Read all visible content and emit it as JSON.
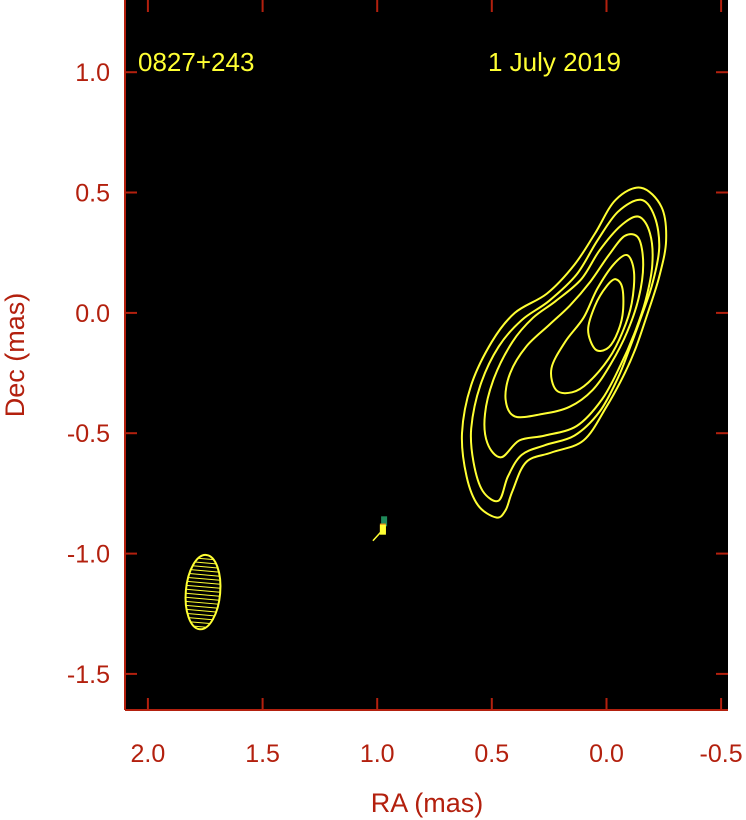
{
  "chart_data": {
    "type": "contour",
    "source_label": "0827+243",
    "date_label": "1 July 2019",
    "xlabel": "RA (mas)",
    "ylabel": "Dec (mas)",
    "xlim": [
      2.1,
      -0.53
    ],
    "ylim": [
      -1.65,
      1.3
    ],
    "x_ticks": [
      "2.0",
      "1.5",
      "1.0",
      "0.5",
      "0.0",
      "-0.5"
    ],
    "y_ticks": [
      "1.0",
      "0.5",
      "0.0",
      "-0.5",
      "-1.0",
      "-1.5"
    ],
    "x_tick_values": [
      2.0,
      1.5,
      1.0,
      0.5,
      0.0,
      -0.5
    ],
    "y_tick_values": [
      1.0,
      0.5,
      0.0,
      -0.5,
      -1.0,
      -1.5
    ],
    "background_color": "#000000",
    "contour_color": "#ffff33",
    "axis_color": "#b3200e",
    "contours": [
      [
        [
          0.48,
          -0.85
        ],
        [
          0.56,
          -0.8
        ],
        [
          0.61,
          -0.68
        ],
        [
          0.63,
          -0.5
        ],
        [
          0.59,
          -0.3
        ],
        [
          0.5,
          -0.12
        ],
        [
          0.4,
          0.0
        ],
        [
          0.26,
          0.08
        ],
        [
          0.14,
          0.2
        ],
        [
          0.05,
          0.33
        ],
        [
          -0.04,
          0.47
        ],
        [
          -0.15,
          0.52
        ],
        [
          -0.24,
          0.44
        ],
        [
          -0.26,
          0.3
        ],
        [
          -0.23,
          0.15
        ],
        [
          -0.18,
          0.0
        ],
        [
          -0.13,
          -0.14
        ],
        [
          -0.08,
          -0.25
        ],
        [
          0.0,
          -0.39
        ],
        [
          0.1,
          -0.53
        ],
        [
          0.24,
          -0.58
        ],
        [
          0.35,
          -0.62
        ],
        [
          0.41,
          -0.74
        ],
        [
          0.44,
          -0.82
        ]
      ],
      [
        [
          0.47,
          -0.78
        ],
        [
          0.54,
          -0.74
        ],
        [
          0.58,
          -0.62
        ],
        [
          0.59,
          -0.48
        ],
        [
          0.55,
          -0.3
        ],
        [
          0.47,
          -0.14
        ],
        [
          0.37,
          -0.03
        ],
        [
          0.25,
          0.05
        ],
        [
          0.13,
          0.16
        ],
        [
          0.04,
          0.3
        ],
        [
          -0.05,
          0.42
        ],
        [
          -0.15,
          0.47
        ],
        [
          -0.21,
          0.4
        ],
        [
          -0.23,
          0.27
        ],
        [
          -0.2,
          0.12
        ],
        [
          -0.15,
          -0.02
        ],
        [
          -0.1,
          -0.15
        ],
        [
          -0.05,
          -0.27
        ],
        [
          0.03,
          -0.41
        ],
        [
          0.14,
          -0.51
        ],
        [
          0.27,
          -0.55
        ],
        [
          0.37,
          -0.59
        ],
        [
          0.43,
          -0.68
        ]
      ],
      [
        [
          0.46,
          -0.6
        ],
        [
          0.52,
          -0.54
        ],
        [
          0.53,
          -0.42
        ],
        [
          0.49,
          -0.27
        ],
        [
          0.41,
          -0.12
        ],
        [
          0.32,
          -0.02
        ],
        [
          0.22,
          0.05
        ],
        [
          0.11,
          0.14
        ],
        [
          0.03,
          0.26
        ],
        [
          -0.06,
          0.36
        ],
        [
          -0.14,
          0.4
        ],
        [
          -0.19,
          0.33
        ],
        [
          -0.2,
          0.2
        ],
        [
          -0.17,
          0.05
        ],
        [
          -0.12,
          -0.09
        ],
        [
          -0.06,
          -0.22
        ],
        [
          0.02,
          -0.36
        ],
        [
          0.13,
          -0.47
        ],
        [
          0.27,
          -0.51
        ],
        [
          0.38,
          -0.53
        ]
      ],
      [
        [
          0.4,
          -0.43
        ],
        [
          0.44,
          -0.36
        ],
        [
          0.42,
          -0.25
        ],
        [
          0.35,
          -0.14
        ],
        [
          0.25,
          -0.05
        ],
        [
          0.16,
          0.03
        ],
        [
          0.07,
          0.13
        ],
        [
          -0.01,
          0.24
        ],
        [
          -0.08,
          0.32
        ],
        [
          -0.14,
          0.31
        ],
        [
          -0.16,
          0.2
        ],
        [
          -0.14,
          0.06
        ],
        [
          -0.09,
          -0.08
        ],
        [
          -0.02,
          -0.21
        ],
        [
          0.06,
          -0.32
        ],
        [
          0.16,
          -0.39
        ],
        [
          0.28,
          -0.42
        ]
      ],
      [
        [
          0.22,
          -0.32
        ],
        [
          0.24,
          -0.23
        ],
        [
          0.18,
          -0.12
        ],
        [
          0.1,
          -0.02
        ],
        [
          0.04,
          0.1
        ],
        [
          -0.03,
          0.2
        ],
        [
          -0.09,
          0.24
        ],
        [
          -0.12,
          0.17
        ],
        [
          -0.11,
          0.04
        ],
        [
          -0.07,
          -0.08
        ],
        [
          -0.01,
          -0.19
        ],
        [
          0.08,
          -0.29
        ],
        [
          0.15,
          -0.33
        ]
      ],
      [
        [
          0.05,
          -0.15
        ],
        [
          0.08,
          -0.07
        ],
        [
          0.05,
          0.03
        ],
        [
          0.0,
          0.11
        ],
        [
          -0.04,
          0.14
        ],
        [
          -0.07,
          0.1
        ],
        [
          -0.07,
          -0.01
        ],
        [
          -0.04,
          -0.1
        ],
        [
          0.0,
          -0.15
        ]
      ]
    ],
    "feature_marks": [
      {
        "ra": 0.97,
        "dec": -0.87,
        "color": "#1f8a5a"
      },
      {
        "ra": 0.975,
        "dec": -0.9,
        "color": "#e08a1a"
      },
      {
        "ra": 0.975,
        "dec": -0.905,
        "color": "#ffff33"
      }
    ],
    "beam": {
      "ra": 1.76,
      "dec": -1.16,
      "major_mas": 0.31,
      "minor_mas": 0.15,
      "pa_deg": 5
    }
  }
}
